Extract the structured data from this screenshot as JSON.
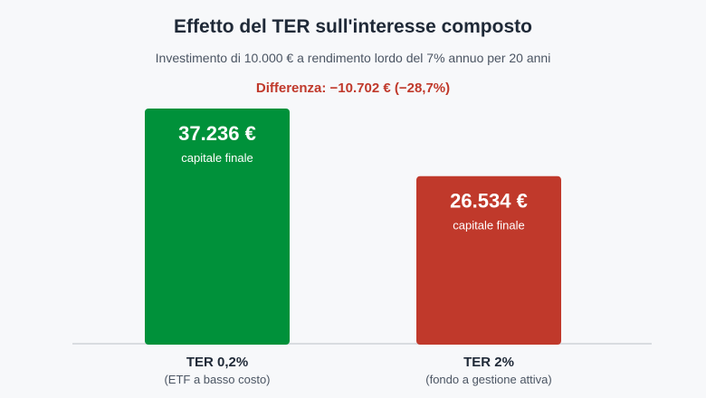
{
  "title": "Effetto del TER sull'interesse composto",
  "subtitle": "Investimento di 10.000 € a rendimento lordo del 7% annuo per 20 anni",
  "difference": {
    "text": "Differenza: −10.702 € (−28,7%)",
    "color": "#c0392b"
  },
  "chart_data": {
    "type": "bar",
    "categories": [
      "TER 0,2%",
      "TER 2%"
    ],
    "category_subtitles": [
      "(ETF a basso costo)",
      "(fondo a gestione attiva)"
    ],
    "values": [
      37236,
      26534
    ],
    "value_labels": [
      "37.236 €",
      "26.534 €"
    ],
    "bar_caption": "capitale finale",
    "colors": [
      "#00913a",
      "#c0392b"
    ],
    "ylim": [
      0,
      37236
    ],
    "grid": false,
    "legend": "none"
  }
}
